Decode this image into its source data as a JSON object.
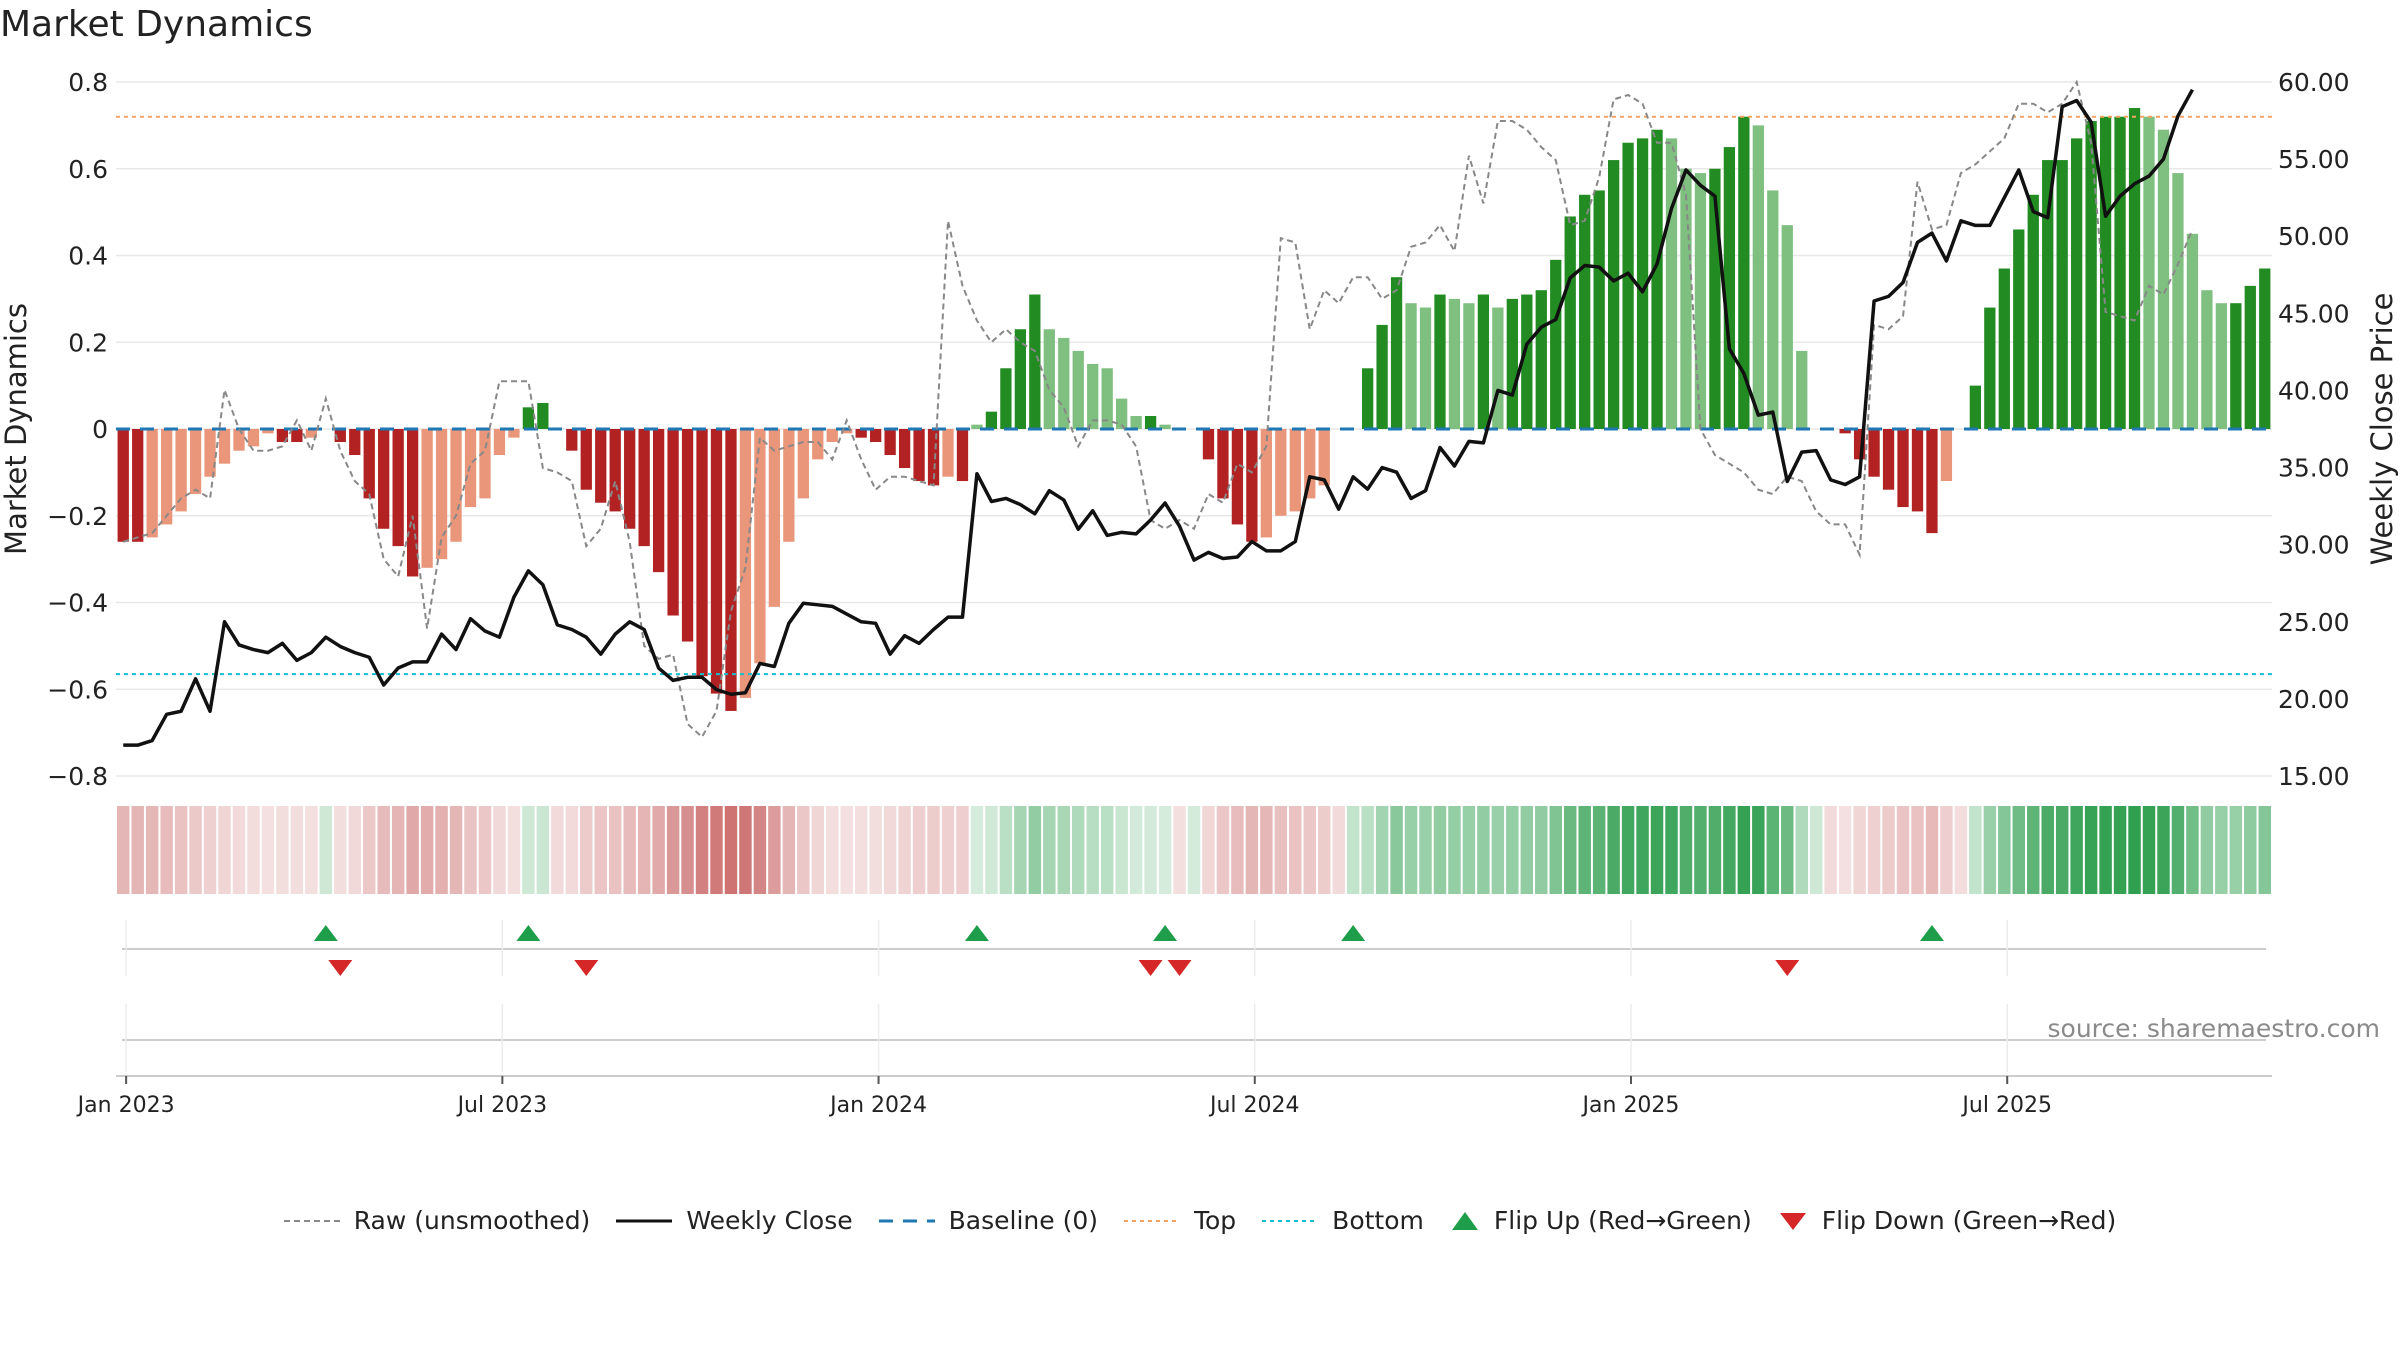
{
  "title": "Market Dynamics",
  "source": "source: sharemaestro.com",
  "chart_data": {
    "type": "bar",
    "title": "Market Dynamics",
    "left_axis": {
      "label": "Market Dynamics",
      "range": [
        -0.8,
        0.8
      ],
      "ticks": [
        "0.8",
        "0.6",
        "0.4",
        "0.2",
        "0",
        "−0.2",
        "−0.4",
        "−0.6",
        "−0.8"
      ]
    },
    "right_axis": {
      "label": "Weekly Close Price",
      "range": [
        15,
        60
      ],
      "ticks": [
        "60.00",
        "55.00",
        "50.00",
        "45.00",
        "40.00",
        "35.00",
        "30.00",
        "25.00",
        "20.00",
        "15.00"
      ]
    },
    "x_ticks": [
      "Jan 2023",
      "Jul 2023",
      "Jan 2024",
      "Jul 2024",
      "Jan 2025",
      "Jul 2025"
    ],
    "top_level": 0.72,
    "bottom_level": -0.565,
    "grid": true,
    "colors": {
      "bull_strong": "#228b22",
      "bull_weak": "#7fbf7f",
      "bear_strong": "#b22222",
      "bear_weak": "#e9967a",
      "close": "#111111",
      "raw": "#888888",
      "baseline": "#1f77b4",
      "top": "#f4a460",
      "bottom": "#17becf",
      "flip_up": "#1e9e4a",
      "flip_down": "#d62728"
    },
    "series": [
      {
        "name": "Market Dynamics",
        "values": [
          -0.26,
          -0.26,
          -0.25,
          -0.22,
          -0.19,
          -0.15,
          -0.11,
          -0.08,
          -0.05,
          -0.04,
          -0.01,
          -0.03,
          -0.03,
          -0.02,
          0.0,
          -0.03,
          -0.06,
          -0.16,
          -0.23,
          -0.27,
          -0.34,
          -0.32,
          -0.3,
          -0.26,
          -0.18,
          -0.16,
          -0.06,
          -0.02,
          0.05,
          0.06,
          0.0,
          -0.05,
          -0.14,
          -0.17,
          -0.19,
          -0.23,
          -0.27,
          -0.33,
          -0.43,
          -0.49,
          -0.57,
          -0.61,
          -0.65,
          -0.62,
          -0.54,
          -0.41,
          -0.26,
          -0.16,
          -0.07,
          -0.03,
          -0.01,
          -0.02,
          -0.03,
          -0.06,
          -0.09,
          -0.12,
          -0.13,
          -0.11,
          -0.12,
          0.01,
          0.04,
          0.14,
          0.23,
          0.31,
          0.23,
          0.21,
          0.18,
          0.15,
          0.14,
          0.07,
          0.03,
          0.03,
          0.01,
          0.0,
          0.0,
          -0.07,
          -0.16,
          -0.22,
          -0.26,
          -0.25,
          -0.2,
          -0.19,
          -0.16,
          -0.13,
          0.0,
          0.0,
          0.14,
          0.24,
          0.35,
          0.29,
          0.28,
          0.31,
          0.3,
          0.29,
          0.31,
          0.28,
          0.3,
          0.31,
          0.32,
          0.39,
          0.49,
          0.54,
          0.55,
          0.62,
          0.66,
          0.67,
          0.69,
          0.67,
          0.6,
          0.59,
          0.6,
          0.65,
          0.72,
          0.7,
          0.55,
          0.47,
          0.18,
          0.0,
          0.0,
          -0.01,
          -0.07,
          -0.11,
          -0.14,
          -0.18,
          -0.19,
          -0.24,
          -0.12,
          0.0,
          0.1,
          0.28,
          0.37,
          0.46,
          0.54,
          0.62,
          0.62,
          0.67,
          0.71,
          0.72,
          0.72,
          0.74,
          0.72,
          0.69,
          0.59,
          0.45,
          0.32,
          0.29,
          0.29,
          0.33,
          0.37
        ],
        "raw": [
          -0.26,
          -0.25,
          -0.24,
          -0.2,
          -0.16,
          -0.14,
          -0.16,
          0.09,
          0.0,
          -0.05,
          -0.05,
          -0.04,
          0.02,
          -0.05,
          0.07,
          -0.05,
          -0.12,
          -0.15,
          -0.3,
          -0.34,
          -0.2,
          -0.46,
          -0.25,
          -0.2,
          -0.08,
          -0.05,
          0.11,
          0.11,
          0.11,
          -0.09,
          -0.1,
          -0.12,
          -0.27,
          -0.23,
          -0.12,
          -0.26,
          -0.5,
          -0.53,
          -0.52,
          -0.68,
          -0.71,
          -0.65,
          -0.42,
          -0.32,
          -0.02,
          -0.05,
          -0.04,
          -0.03,
          -0.03,
          -0.07,
          0.02,
          -0.07,
          -0.14,
          -0.11,
          -0.11,
          -0.12,
          -0.13,
          0.48,
          0.33,
          0.25,
          0.2,
          0.23,
          0.2,
          0.18,
          0.09,
          0.05,
          -0.04,
          0.02,
          0.02,
          0.01,
          -0.04,
          -0.21,
          -0.23,
          -0.21,
          -0.23,
          -0.15,
          -0.17,
          -0.08,
          -0.1,
          -0.04,
          0.44,
          0.43,
          0.23,
          0.32,
          0.29,
          0.35,
          0.35,
          0.3,
          0.32,
          0.42,
          0.43,
          0.47,
          0.41,
          0.63,
          0.52,
          0.71,
          0.71,
          0.69,
          0.65,
          0.62,
          0.47,
          0.48,
          0.58,
          0.76,
          0.77,
          0.75,
          0.66,
          0.66,
          0.54,
          0.0,
          -0.06,
          -0.08,
          -0.1,
          -0.14,
          -0.15,
          -0.11,
          -0.12,
          -0.19,
          -0.22,
          -0.22,
          -0.29,
          0.24,
          0.23,
          0.26,
          0.57,
          0.46,
          0.47,
          0.59,
          0.61,
          0.64,
          0.67,
          0.75,
          0.75,
          0.73,
          0.75,
          0.8,
          0.66,
          0.27,
          0.26,
          0.25,
          0.33,
          0.31,
          0.38,
          0.46
        ]
      },
      {
        "name": "Weekly Close",
        "values": [
          17.0,
          17.0,
          17.3,
          19.0,
          19.2,
          21.3,
          19.2,
          25.0,
          23.5,
          23.2,
          23.0,
          23.6,
          22.5,
          23.0,
          24.0,
          23.4,
          23.0,
          22.7,
          20.9,
          22.0,
          22.4,
          22.4,
          24.2,
          23.2,
          25.2,
          24.4,
          24.0,
          26.6,
          28.3,
          27.4,
          24.8,
          24.5,
          24.0,
          22.9,
          24.2,
          25.0,
          24.5,
          22.0,
          21.2,
          21.4,
          21.4,
          20.6,
          20.3,
          20.4,
          22.3,
          22.1,
          24.9,
          26.2,
          26.1,
          26.0,
          25.5,
          25.0,
          24.9,
          22.9,
          24.1,
          23.6,
          24.5,
          25.3,
          25.3,
          34.6,
          32.8,
          33.0,
          32.6,
          32.0,
          33.5,
          32.9,
          31.0,
          32.2,
          30.6,
          30.8,
          30.7,
          31.6,
          32.7,
          31.2,
          29.0,
          29.5,
          29.1,
          29.2,
          30.2,
          29.6,
          29.6,
          30.2,
          34.4,
          34.2,
          32.3,
          34.4,
          33.6,
          35.0,
          34.7,
          33.0,
          33.5,
          36.3,
          35.1,
          36.7,
          36.6,
          40.0,
          39.7,
          43.0,
          44.1,
          44.6,
          47.3,
          48.1,
          48.0,
          47.1,
          47.6,
          46.4,
          48.2,
          51.8,
          54.3,
          53.3,
          52.6,
          42.7,
          41.1,
          38.4,
          38.6,
          34.1,
          36.0,
          36.1,
          34.2,
          33.9,
          34.4,
          45.8,
          46.1,
          47.0,
          49.6,
          50.2,
          48.4,
          51.0,
          50.7,
          50.7,
          52.5,
          54.3,
          51.6,
          51.2,
          58.4,
          58.8,
          57.4,
          51.3,
          52.6,
          53.4,
          53.9,
          55.0,
          57.8,
          59.5
        ]
      }
    ],
    "regime_strip": [
      -0.26,
      -0.26,
      -0.25,
      -0.22,
      -0.19,
      -0.15,
      -0.11,
      -0.08,
      -0.05,
      -0.04,
      -0.01,
      -0.03,
      -0.03,
      -0.02,
      0.05,
      -0.03,
      -0.06,
      -0.16,
      -0.23,
      -0.27,
      -0.34,
      -0.32,
      -0.3,
      -0.26,
      -0.18,
      -0.16,
      -0.06,
      -0.02,
      0.05,
      0.06,
      -0.05,
      -0.05,
      -0.14,
      -0.17,
      -0.19,
      -0.23,
      -0.27,
      -0.33,
      -0.43,
      -0.49,
      -0.57,
      -0.61,
      -0.65,
      -0.62,
      -0.54,
      -0.41,
      -0.26,
      -0.16,
      -0.07,
      -0.03,
      -0.01,
      -0.02,
      -0.03,
      -0.06,
      -0.09,
      -0.12,
      -0.13,
      -0.11,
      -0.12,
      0.01,
      0.04,
      0.14,
      0.23,
      0.31,
      0.23,
      0.21,
      0.18,
      0.15,
      0.14,
      0.07,
      0.03,
      0.03,
      0.01,
      -0.02,
      0.02,
      -0.07,
      -0.16,
      -0.22,
      -0.26,
      -0.25,
      -0.2,
      -0.19,
      -0.16,
      -0.13,
      -0.05,
      0.1,
      0.14,
      0.24,
      0.35,
      0.29,
      0.28,
      0.31,
      0.3,
      0.29,
      0.31,
      0.28,
      0.3,
      0.31,
      0.32,
      0.39,
      0.49,
      0.54,
      0.55,
      0.62,
      0.66,
      0.67,
      0.69,
      0.67,
      0.6,
      0.59,
      0.6,
      0.65,
      0.72,
      0.7,
      0.55,
      0.47,
      0.18,
      0.05,
      -0.05,
      -0.01,
      -0.07,
      -0.11,
      -0.14,
      -0.18,
      -0.19,
      -0.24,
      -0.12,
      -0.04,
      0.1,
      0.28,
      0.37,
      0.46,
      0.54,
      0.62,
      0.62,
      0.67,
      0.71,
      0.72,
      0.72,
      0.74,
      0.72,
      0.69,
      0.59,
      0.45,
      0.32,
      0.29,
      0.29,
      0.33,
      0.37
    ],
    "flips": {
      "up": [
        14,
        28,
        59,
        72,
        85,
        125
      ],
      "down": [
        15,
        32,
        71,
        73,
        115
      ]
    },
    "legend": [
      "Raw (unsmoothed)",
      "Weekly Close",
      "Baseline (0)",
      "Top",
      "Bottom",
      "Flip Up (Red→Green)",
      "Flip Down (Green→Red)"
    ]
  }
}
